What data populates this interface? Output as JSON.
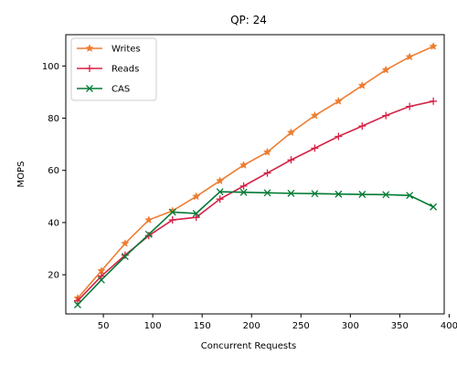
{
  "chart_data": {
    "type": "line",
    "title": "QP: 24",
    "xlabel": "Concurrent Requests",
    "ylabel": "MOPS",
    "xlim": [
      12,
      395
    ],
    "ylim": [
      5,
      112
    ],
    "xticks": [
      50,
      100,
      150,
      200,
      250,
      300,
      350,
      400
    ],
    "yticks": [
      20,
      40,
      60,
      80,
      100
    ],
    "grid": false,
    "legend": "top-left",
    "x": [
      24,
      48,
      72,
      96,
      120,
      144,
      168,
      192,
      216,
      240,
      264,
      288,
      312,
      336,
      360,
      384
    ],
    "series": [
      {
        "name": "Writes",
        "color": "#ed7d31",
        "marker": "star",
        "values": [
          11,
          21.5,
          32,
          41,
          44.5,
          50,
          56,
          62,
          67,
          74.5,
          81,
          86.5,
          92.5,
          98.5,
          103.5,
          107.5
        ]
      },
      {
        "name": "Reads",
        "color": "#d62246",
        "marker": "plus",
        "values": [
          10,
          19.5,
          27.5,
          35,
          41,
          42,
          49,
          54,
          59,
          64,
          68.5,
          73,
          77,
          81,
          84.5,
          86.5
        ]
      },
      {
        "name": "CAS",
        "color": "#007a33",
        "marker": "x",
        "values": [
          8.5,
          18,
          27,
          35.5,
          44,
          43.5,
          51.8,
          51.6,
          51.4,
          51.2,
          51.1,
          50.9,
          50.8,
          50.7,
          50.4,
          46
        ]
      }
    ]
  }
}
